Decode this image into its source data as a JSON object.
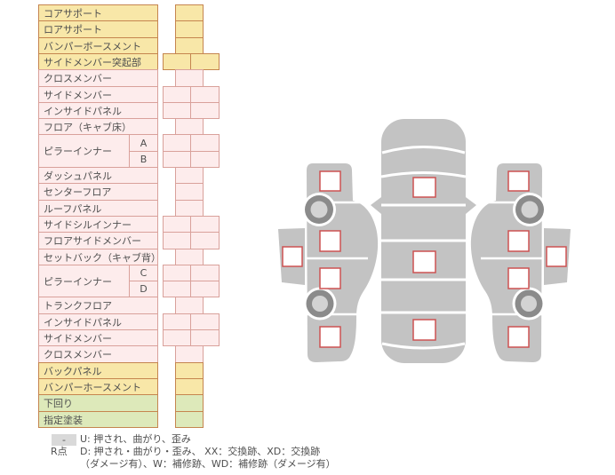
{
  "table": {
    "rows": [
      {
        "label": "コアサポート",
        "color": "yellow",
        "cells": 1
      },
      {
        "label": "ロアサポート",
        "color": "yellow",
        "cells": 1
      },
      {
        "label": "バンパーボースメント",
        "color": "yellow",
        "cells": 1
      },
      {
        "label": "サイドメンバー突起部",
        "color": "yellow",
        "cells": 2
      },
      {
        "label": "クロスメンバー",
        "color": "pink",
        "cells": 1
      },
      {
        "label": "サイドメンバー",
        "color": "pink",
        "cells": 2
      },
      {
        "label": "インサイドパネル",
        "color": "pink",
        "cells": 2
      },
      {
        "label": "フロア（キャブ床）",
        "color": "pink",
        "cells": 1
      },
      {
        "label": "ピラーインナー",
        "sub": "A",
        "groupStart": true,
        "color": "pink",
        "cells": 2
      },
      {
        "label": "ピラーインナー",
        "sub": "B",
        "color": "pink",
        "cells": 2
      },
      {
        "label": "ダッシュパネル",
        "color": "pink",
        "cells": 1
      },
      {
        "label": "センターフロア",
        "color": "pink",
        "cells": 1
      },
      {
        "label": "ルーフパネル",
        "color": "pink",
        "cells": 1
      },
      {
        "label": "サイドシルインナー",
        "color": "pink",
        "cells": 2
      },
      {
        "label": "フロアサイドメンバー",
        "color": "pink",
        "cells": 2
      },
      {
        "label": "セットバック（キャブ背）",
        "color": "pink",
        "cells": 1
      },
      {
        "label": "ピラーインナー",
        "sub": "C",
        "groupStart": true,
        "color": "pink",
        "cells": 2
      },
      {
        "label": "ピラーインナー",
        "sub": "D",
        "color": "pink",
        "cells": 2
      },
      {
        "label": "トランクフロア",
        "color": "pink",
        "cells": 1
      },
      {
        "label": "インサイドパネル",
        "color": "pink",
        "cells": 2
      },
      {
        "label": "サイドメンバー",
        "color": "pink",
        "cells": 2
      },
      {
        "label": "クロスメンバー",
        "color": "pink",
        "cells": 1
      },
      {
        "label": "バックパネル",
        "color": "yellow",
        "cells": 1
      },
      {
        "label": "バンパーホースメント",
        "color": "yellow",
        "cells": 1
      },
      {
        "label": "下回り",
        "color": "green",
        "cells": 1
      },
      {
        "label": "指定塗装",
        "color": "green",
        "cells": 1
      }
    ]
  },
  "legend": {
    "badge": "-",
    "line_u": "U: 押され、曲がり、歪み",
    "r_label": "R点",
    "line_d1": "D: 押され・曲がり・歪み、 XX：交換跡、XD：交換跡",
    "line_d2": "（ダメージ有）、W：補修跡、WD：補修跡（ダメージ有）"
  },
  "diagram": {
    "views": [
      "car-side-left",
      "car-top",
      "car-side-right"
    ],
    "marker_names": [
      "marker-left-front-fender",
      "marker-left-front-door",
      "marker-left-rocker",
      "marker-left-rear-door",
      "marker-left-rear-fender",
      "marker-hood",
      "marker-roof",
      "marker-trunk",
      "marker-right-front-fender",
      "marker-right-front-door",
      "marker-right-rocker",
      "marker-right-rear-door",
      "marker-right-rear-fender"
    ]
  },
  "colors": {
    "row_yellow": "#f8e7a8",
    "row_pink": "#fdecec",
    "row_green": "#dde9ba",
    "border_brick": "#c5854f",
    "border_rose": "#d9a19b",
    "marker_red": "#cd5252",
    "car_gray": "#c3c3c3",
    "wheel_ring": "#8b8b8b",
    "wheel_hub": "#d3d3d3",
    "legend_badge_bg": "#d9d9d9",
    "text": "#4f4f4f"
  }
}
